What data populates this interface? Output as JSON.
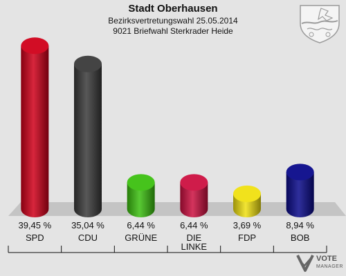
{
  "header": {
    "title": "Stadt Oberhausen",
    "subtitle1": "Bezirksvertretungswahl 25.05.2014",
    "subtitle2": "9021 Briefwahl Sterkrader Heide"
  },
  "logo": {
    "text": "VOTE",
    "subtext": "MANAGER",
    "icon": "vote-manager-logo"
  },
  "crest": {
    "icon": "nrw-crest-icon"
  },
  "chart_data": {
    "type": "bar",
    "categories": [
      "SPD",
      "CDU",
      "GRÜNE",
      "DIE LINKE",
      "FDP",
      "BOB"
    ],
    "category_lines": [
      [
        "SPD"
      ],
      [
        "CDU"
      ],
      [
        "GRÜNE"
      ],
      [
        "DIE",
        "LINKE"
      ],
      [
        "FDP"
      ],
      [
        "BOB"
      ]
    ],
    "values": [
      39.45,
      35.04,
      6.44,
      6.44,
      3.69,
      8.94
    ],
    "value_labels": [
      "39,45 %",
      "35,04 %",
      "6,44 %",
      "6,44 %",
      "3,69 %",
      "8,94 %"
    ],
    "colors": [
      "#d0001a",
      "#3a3a3a",
      "#3cc010",
      "#cc1040",
      "#f0e010",
      "#0a0a8a"
    ],
    "ylim": [
      0,
      40
    ],
    "title": "",
    "xlabel": "",
    "ylabel": "",
    "legend": "none",
    "grid": false
  }
}
